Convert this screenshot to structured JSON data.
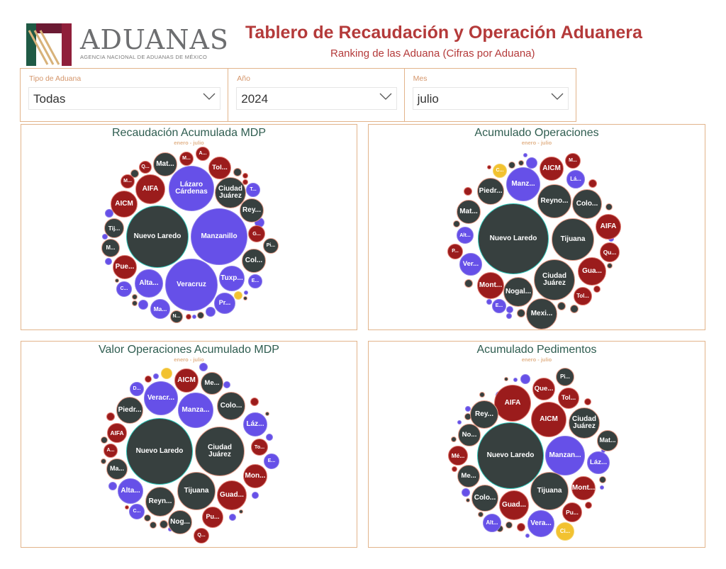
{
  "logo": {
    "name": "ADUANAS",
    "subtitle": "AGENCIA NACIONAL DE ADUANAS DE MÉXICO"
  },
  "header": {
    "title": "Tablero de Recaudación y Operación Aduanera",
    "subtitle": "Ranking de las Aduana (Cifras por Aduana)"
  },
  "filters": [
    {
      "label": "Tipo de Aduana",
      "value": "Todas"
    },
    {
      "label": "Año",
      "value": "2024"
    },
    {
      "label": "Mes",
      "value": "julio"
    }
  ],
  "colors": {
    "dark": "#37403f",
    "red": "#9b1c1c",
    "purple": "#6650e8",
    "yellow": "#f2c230",
    "title_red": "#b43a3a",
    "border": "#e2b48b"
  },
  "chart_data": [
    {
      "type": "bubble",
      "title": "Recaudación Acumulada MDP",
      "subtitle": "enero - julio",
      "bubbles": [
        "Nuevo Laredo",
        "Manzanillo",
        "Veracruz",
        "Lázaro\nCárdenas",
        "Alta...",
        "Tuxp...",
        "Ciudad\nJuárez",
        "AIFA",
        "AICM",
        "Mat...",
        "Tol...",
        "Rey...",
        "Col...",
        "Pue...",
        "Ma...",
        "Pr...",
        "Tij...",
        "M...",
        "G...",
        "Pi...",
        "E...",
        "C...",
        "T...",
        "Q...",
        "M...",
        "M...",
        "A...",
        "N..."
      ]
    },
    {
      "type": "bubble",
      "title": "Acumulado Operaciones",
      "subtitle": "enero - julio",
      "bubbles": [
        "Nuevo Laredo",
        "Tijuana",
        "Ciudad\nJuárez",
        "Reyno...",
        "Manz...",
        "Colo...",
        "AIFA",
        "Qu...",
        "Gua...",
        "Tol...",
        "Mexi...",
        "Nogal...",
        "Mont...",
        "E...",
        "Ver...",
        "P...",
        "Alt...",
        "Mat...",
        "Piedr...",
        "C...",
        "AICM",
        "M...",
        "Lá..."
      ]
    },
    {
      "type": "bubble",
      "title": "Valor Operaciones Acumulado MDP",
      "subtitle": "enero - julio",
      "bubbles": [
        "Nuevo Laredo",
        "Ciudad\nJuárez",
        "Tijuana",
        "Manza...",
        "Veracr...",
        "Piedr...",
        "Colo...",
        "AICM",
        "Me...",
        "Láz...",
        "Mon...",
        "Guad...",
        "Reyn...",
        "Nog...",
        "Pu...",
        "Q...",
        "Alta...",
        "AIFA",
        "Ma...",
        "A...",
        "To...",
        "E...",
        "D...",
        "C..."
      ]
    },
    {
      "type": "bubble",
      "title": "Acumulado Pedimentos",
      "subtitle": "enero - julio",
      "bubbles": [
        "Nuevo Laredo",
        "Manzan...",
        "Tijuana",
        "AICM",
        "AIFA",
        "Ciudad\nJuárez",
        "Rey...",
        "Que...",
        "Tol...",
        "Pi...",
        "Mat...",
        "Láz...",
        "Mont...",
        "Pu...",
        "Guad...",
        "Vera...",
        "Ci...",
        "Alt...",
        "Colo...",
        "Me...",
        "Mé...",
        "No..."
      ]
    }
  ]
}
